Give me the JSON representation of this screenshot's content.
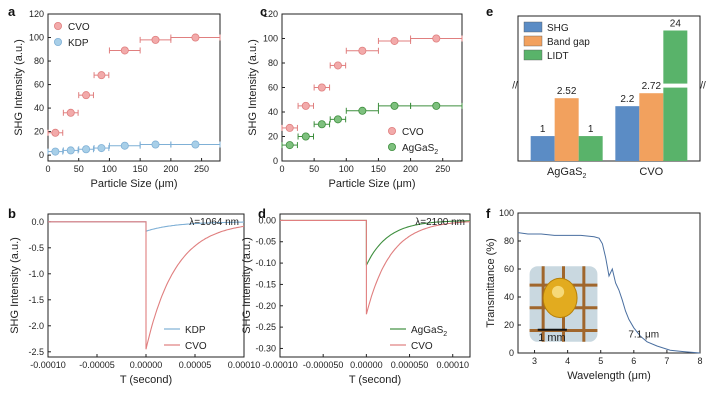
{
  "colors": {
    "red": "#e07f7f",
    "red_fill": "#f2aaaa",
    "blue": "#7fb0d6",
    "blue_fill": "#a8cfe8",
    "green": "#3f8f3f",
    "green_fill": "#7ec07e",
    "bar_blue": "#5b8cc5",
    "bar_orange": "#f2a15e",
    "bar_green": "#59b36a"
  },
  "chart_data": [
    {
      "panel": "a",
      "type": "scatter",
      "xlabel": "Particle Size (μm)",
      "ylabel": "SHG Intensity (a.u.)",
      "xlim": [
        0,
        280
      ],
      "ylim": [
        -5,
        120
      ],
      "xticks": [
        0,
        50,
        100,
        150,
        200,
        250
      ],
      "yticks": [
        0,
        20,
        40,
        60,
        80,
        100,
        120
      ],
      "legend": "top-left",
      "series": [
        {
          "name": "CVO",
          "color": "red",
          "x": [
            12,
            37,
            62,
            87,
            125,
            175,
            240
          ],
          "y": [
            19,
            36,
            51,
            68,
            89,
            98,
            100
          ],
          "xerr": [
            12,
            12,
            12,
            12,
            25,
            25,
            40
          ]
        },
        {
          "name": "KDP",
          "color": "blue",
          "x": [
            12,
            37,
            62,
            87,
            125,
            175,
            240
          ],
          "y": [
            3,
            4,
            5,
            6,
            8,
            9,
            9
          ],
          "xerr": [
            12,
            12,
            12,
            12,
            25,
            25,
            40
          ]
        }
      ]
    },
    {
      "panel": "b",
      "type": "line",
      "xlabel": "T (second)",
      "ylabel": "SHG Intensity (a.u.)",
      "xlim": [
        -0.0001,
        0.0001
      ],
      "ylim": [
        -2.6,
        0.15
      ],
      "xticks": [
        "-0.00010",
        "-0.00005",
        "0.00000",
        "0.00005",
        "0.00010"
      ],
      "yticks": [
        "0.0",
        "-0.5",
        "-1.0",
        "-1.5",
        "-2.0",
        "-2.5"
      ],
      "annotation": "λ=1064 nm",
      "legend": "bottom-right",
      "series": [
        {
          "name": "KDP",
          "color": "blue",
          "peak": -0.18,
          "tau": 3e-05
        },
        {
          "name": "CVO",
          "color": "red",
          "peak": -2.45,
          "tau": 3e-05
        }
      ]
    },
    {
      "panel": "c",
      "type": "scatter",
      "xlabel": "Particle Size (μm)",
      "ylabel": "SHG Intensity (a.u.)",
      "xlim": [
        0,
        280
      ],
      "ylim": [
        0,
        120
      ],
      "xticks": [
        0,
        50,
        100,
        150,
        200,
        250
      ],
      "yticks": [
        0,
        20,
        40,
        60,
        80,
        100,
        120
      ],
      "legend": "bottom-right",
      "series": [
        {
          "name": "CVO",
          "color": "red",
          "x": [
            12,
            37,
            62,
            87,
            125,
            175,
            240
          ],
          "y": [
            27,
            45,
            60,
            78,
            90,
            98,
            100
          ],
          "xerr": [
            12,
            12,
            12,
            12,
            25,
            25,
            40
          ]
        },
        {
          "name": "AgGaS",
          "name_sub": "2",
          "color": "green",
          "x": [
            12,
            37,
            62,
            87,
            125,
            175,
            240
          ],
          "y": [
            13,
            20,
            30,
            34,
            41,
            45,
            45
          ],
          "xerr": [
            12,
            12,
            12,
            12,
            25,
            25,
            40
          ]
        }
      ]
    },
    {
      "panel": "d",
      "type": "line",
      "xlabel": "T (second)",
      "ylabel": "SHG Intensity (a.u.)",
      "xlim": [
        -0.0001,
        0.00012
      ],
      "ylim": [
        -0.32,
        0.015
      ],
      "xticks": [
        "-0.00010",
        "-0.000050",
        "0.00000",
        "0.000050",
        "0.00010"
      ],
      "yticks": [
        "0.00",
        "-0.05",
        "-0.10",
        "-0.15",
        "-0.20",
        "-0.25",
        "-0.30"
      ],
      "annotation": "λ=2100 nm",
      "legend": "bottom-right",
      "series": [
        {
          "name": "AgGaS",
          "name_sub": "2",
          "color": "green",
          "peak": -0.105,
          "tau": 2.5e-05
        },
        {
          "name": "CVO",
          "color": "red",
          "peak": -0.22,
          "tau": 2.8e-05
        }
      ]
    },
    {
      "panel": "e",
      "type": "bar",
      "categories": [
        "AgGaS",
        "CVO"
      ],
      "category_subs": [
        "2",
        ""
      ],
      "legend": "top-left",
      "axis_break": true,
      "series": [
        {
          "name": "SHG",
          "color": "bar_blue",
          "values": [
            1,
            2.2
          ],
          "labels": [
            "1",
            "2.2"
          ]
        },
        {
          "name": "Band gap",
          "color": "bar_orange",
          "values": [
            2.52,
            2.72
          ],
          "labels": [
            "2.52",
            "2.72"
          ]
        },
        {
          "name": "LIDT",
          "color": "bar_green",
          "values": [
            1,
            24
          ],
          "labels": [
            "1",
            "24"
          ]
        }
      ]
    },
    {
      "panel": "f",
      "type": "line",
      "xlabel": "Wavelength (μm)",
      "ylabel": "Transmittance (%)",
      "xlim": [
        2.5,
        8
      ],
      "ylim": [
        0,
        100
      ],
      "xticks": [
        3,
        4,
        5,
        6,
        7,
        8
      ],
      "yticks": [
        0,
        20,
        40,
        60,
        80,
        100
      ],
      "inset_label": "1 mm",
      "annotation": "7.1 μm",
      "series": [
        {
          "color": "bar_blue",
          "x": [
            2.5,
            2.8,
            3.2,
            3.6,
            4.0,
            4.4,
            4.8,
            4.95,
            5.05,
            5.15,
            5.25,
            5.35,
            5.45,
            5.55,
            5.65,
            5.75,
            5.85,
            6.0,
            6.2,
            6.4,
            6.7,
            7.1,
            7.5,
            8.0
          ],
          "y": [
            86,
            85,
            85,
            84,
            84,
            84,
            83,
            82,
            78,
            68,
            55,
            60,
            50,
            45,
            38,
            30,
            24,
            18,
            12,
            8,
            5,
            2,
            1,
            0
          ]
        }
      ]
    }
  ],
  "panels": {
    "a": "a",
    "b": "b",
    "c": "c",
    "d": "d",
    "e": "e",
    "f": "f"
  }
}
